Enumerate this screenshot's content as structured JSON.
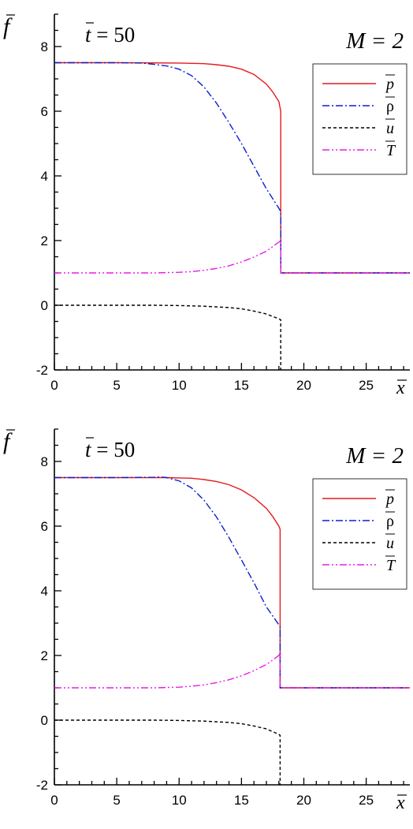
{
  "chart_data": [
    {
      "type": "line",
      "title_var": "t",
      "title_eq": " = 50",
      "annotation": "M = 2",
      "ylabel": "f",
      "xlabel": "x",
      "xlim": [
        0,
        28.5
      ],
      "ylim": [
        -2,
        9
      ],
      "xticks": [
        0,
        5,
        10,
        15,
        20,
        25
      ],
      "yticks": [
        -2,
        0,
        2,
        4,
        6,
        8
      ],
      "xtick_labels": [
        "0",
        "5",
        "10",
        "15",
        "20",
        "25"
      ],
      "ytick_labels": [
        "-2",
        "0",
        "2",
        "4",
        "6",
        "8"
      ],
      "legend_position": "top-right",
      "series": [
        {
          "name": "p",
          "symbol": "p",
          "color": "#e41a1c",
          "dash": "",
          "x": [
            0,
            5,
            10,
            11,
            12,
            13,
            14,
            15,
            16,
            17,
            17.5,
            18,
            18.15,
            18.15,
            20,
            25,
            28.5
          ],
          "y": [
            7.5,
            7.5,
            7.49,
            7.48,
            7.47,
            7.44,
            7.39,
            7.3,
            7.14,
            6.84,
            6.6,
            6.3,
            6.0,
            1.0,
            1.0,
            1.0,
            1.0
          ]
        },
        {
          "name": "ρ",
          "symbol": "ρ",
          "color": "#0b1fcf",
          "dash": "9,3,2,3",
          "x": [
            0,
            5,
            7,
            8,
            9,
            10,
            11,
            12,
            13,
            14,
            15,
            16,
            17,
            18,
            18.15,
            18.15,
            20,
            25,
            28.5
          ],
          "y": [
            7.5,
            7.5,
            7.49,
            7.45,
            7.4,
            7.3,
            7.1,
            6.75,
            6.25,
            5.65,
            5.0,
            4.3,
            3.6,
            3.0,
            2.9,
            1.0,
            1.0,
            1.0,
            1.0
          ]
        },
        {
          "name": "u",
          "symbol": "u",
          "color": "#000000",
          "dash": "4,3",
          "x": [
            0,
            5,
            8,
            10,
            12,
            14,
            15,
            16,
            17,
            18,
            18.15,
            18.15
          ],
          "y": [
            0,
            0,
            0,
            -0.01,
            -0.03,
            -0.07,
            -0.11,
            -0.18,
            -0.27,
            -0.42,
            -0.45,
            -2
          ]
        },
        {
          "name": "T",
          "symbol": "T",
          "color": "#e61ee6",
          "dash": "9,3,2,3,2,3",
          "x": [
            0,
            5,
            8,
            10,
            11,
            12,
            13,
            14,
            15,
            16,
            17,
            18,
            18.15,
            18.15,
            20,
            25,
            28.5
          ],
          "y": [
            1.0,
            1.0,
            1.0,
            1.02,
            1.04,
            1.08,
            1.14,
            1.22,
            1.34,
            1.49,
            1.67,
            1.95,
            2.0,
            1.0,
            1.0,
            1.0,
            1.0
          ]
        }
      ]
    },
    {
      "type": "line",
      "title_var": "t",
      "title_eq": " = 50",
      "annotation": "M = 2",
      "ylabel": "f",
      "xlabel": "x",
      "xlim": [
        0,
        28.5
      ],
      "ylim": [
        -2,
        9
      ],
      "xticks": [
        0,
        5,
        10,
        15,
        20,
        25
      ],
      "yticks": [
        -2,
        0,
        2,
        4,
        6,
        8
      ],
      "xtick_labels": [
        "0",
        "5",
        "10",
        "15",
        "20",
        "25"
      ],
      "ytick_labels": [
        "-2",
        "0",
        "2",
        "4",
        "6",
        "8"
      ],
      "legend_position": "top-right",
      "series": [
        {
          "name": "p",
          "symbol": "p",
          "color": "#e41a1c",
          "dash": "",
          "x": [
            0,
            5,
            9,
            10,
            11,
            12,
            13,
            14,
            15,
            16,
            17,
            17.5,
            18,
            18.1,
            18.1,
            20,
            25,
            28.5
          ],
          "y": [
            7.5,
            7.5,
            7.5,
            7.49,
            7.48,
            7.44,
            7.38,
            7.28,
            7.12,
            6.88,
            6.55,
            6.3,
            6.0,
            5.9,
            1.0,
            1.0,
            1.0,
            1.0
          ]
        },
        {
          "name": "ρ",
          "symbol": "ρ",
          "color": "#0b1fcf",
          "dash": "9,3,2,3",
          "x": [
            0,
            5,
            8,
            8.5,
            9,
            10,
            11,
            12,
            13,
            14,
            15,
            16,
            17,
            18,
            18.1,
            18.1,
            20,
            25,
            28.5
          ],
          "y": [
            7.5,
            7.5,
            7.51,
            7.52,
            7.5,
            7.4,
            7.18,
            6.8,
            6.28,
            5.65,
            4.95,
            4.25,
            3.5,
            2.95,
            2.9,
            1.0,
            1.0,
            1.0,
            1.0
          ]
        },
        {
          "name": "u",
          "symbol": "u",
          "color": "#000000",
          "dash": "4,3",
          "x": [
            0,
            5,
            8,
            10,
            12,
            14,
            15,
            16,
            17,
            18,
            18.1,
            18.1
          ],
          "y": [
            0,
            0,
            0,
            -0.01,
            -0.03,
            -0.07,
            -0.11,
            -0.18,
            -0.27,
            -0.44,
            -0.47,
            -2
          ]
        },
        {
          "name": "T",
          "symbol": "T",
          "color": "#e61ee6",
          "dash": "9,3,2,3,2,3",
          "x": [
            0,
            5,
            8,
            10,
            11,
            12,
            13,
            14,
            15,
            16,
            17,
            18,
            18.1,
            18.1,
            20,
            25,
            28.5
          ],
          "y": [
            1.0,
            1.0,
            1.0,
            1.02,
            1.05,
            1.09,
            1.16,
            1.25,
            1.37,
            1.53,
            1.72,
            2.0,
            2.07,
            1.0,
            1.0,
            1.0,
            1.0
          ]
        }
      ]
    }
  ]
}
